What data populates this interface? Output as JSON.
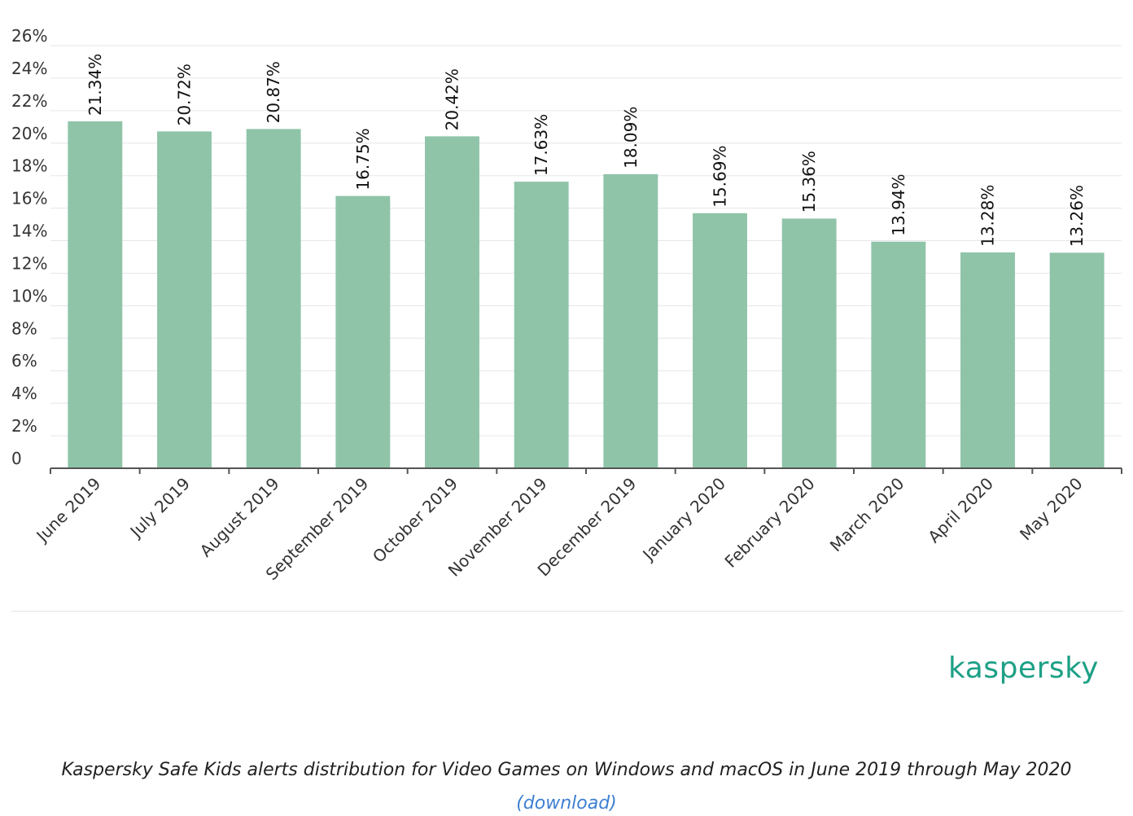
{
  "chart_data": {
    "type": "bar",
    "categories": [
      "June 2019",
      "July 2019",
      "August 2019",
      "September 2019",
      "October 2019",
      "November 2019",
      "December 2019",
      "January 2020",
      "February 2020",
      "March 2020",
      "April 2020",
      "May 2020"
    ],
    "values": [
      21.34,
      20.72,
      20.87,
      16.75,
      20.42,
      17.63,
      18.09,
      15.69,
      15.36,
      13.94,
      13.28,
      13.26
    ],
    "value_labels": [
      "21.34%",
      "20.72%",
      "20.87%",
      "16.75%",
      "20.42%",
      "17.63%",
      "18.09%",
      "15.69%",
      "15.36%",
      "13.94%",
      "13.28%",
      "13.26%"
    ],
    "ylim": [
      0,
      26
    ],
    "yticks": [
      {
        "value": 0,
        "label": "0"
      },
      {
        "value": 2,
        "label": "2%"
      },
      {
        "value": 4,
        "label": "4%"
      },
      {
        "value": 6,
        "label": "6%"
      },
      {
        "value": 8,
        "label": "8%"
      },
      {
        "value": 10,
        "label": "10%"
      },
      {
        "value": 12,
        "label": "12%"
      },
      {
        "value": 14,
        "label": "14%"
      },
      {
        "value": 16,
        "label": "16%"
      },
      {
        "value": 18,
        "label": "18%"
      },
      {
        "value": 20,
        "label": "20%"
      },
      {
        "value": 22,
        "label": "22%"
      },
      {
        "value": 24,
        "label": "24%"
      },
      {
        "value": 26,
        "label": "26%"
      }
    ],
    "grid": true,
    "legend": "none",
    "bar_color": "#8fc4a9"
  },
  "branding": {
    "logo_text": "kaspersky",
    "logo_color": "#1da086"
  },
  "caption": {
    "text": "Kaspersky Safe Kids alerts distribution for Video Games on Windows and macOS in June 2019 through May 2020",
    "link_label": "(download)",
    "link_color": "#3d7fd1"
  }
}
